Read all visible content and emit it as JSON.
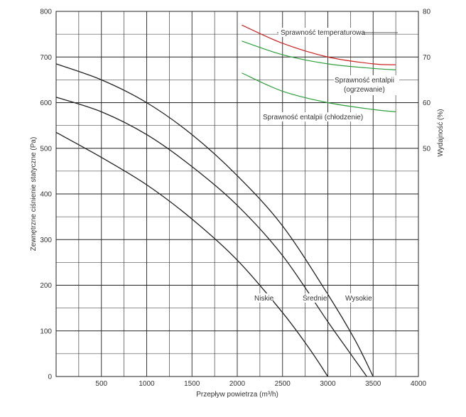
{
  "chart_data": {
    "type": "line",
    "xlabel": "Przepływ powietrza (m³/h)",
    "ylabel_left": "Zewnętrzne ciśnienie statyczne (Pa)",
    "ylabel_right": "Wydajność (%)",
    "xlim": [
      0,
      4000
    ],
    "ylim_left": [
      0,
      800
    ],
    "ylim_right": [
      0,
      80
    ],
    "x_ticks": [
      "500",
      "1000",
      "1500",
      "2000",
      "2500",
      "3000",
      "3500",
      "4000"
    ],
    "y_ticks_left": [
      "0",
      "100",
      "200",
      "300",
      "400",
      "500",
      "600",
      "700",
      "800"
    ],
    "y_ticks_right": [
      "50",
      "60",
      "70",
      "80"
    ],
    "grid": true,
    "fan_curves": [
      {
        "name": "Niskie",
        "x": [
          0,
          500,
          1000,
          1500,
          2000,
          2500,
          2800,
          3000
        ],
        "y": [
          535,
          480,
          420,
          345,
          255,
          140,
          60,
          0
        ],
        "color": "#222222"
      },
      {
        "name": "Średnie",
        "x": [
          0,
          500,
          1000,
          1500,
          2000,
          2500,
          3000,
          3250,
          3430
        ],
        "y": [
          612,
          580,
          530,
          460,
          375,
          265,
          120,
          50,
          0
        ],
        "color": "#222222"
      },
      {
        "name": "Wysokie",
        "x": [
          0,
          500,
          1000,
          1500,
          2000,
          2500,
          3000,
          3300,
          3500
        ],
        "y": [
          685,
          650,
          600,
          530,
          440,
          330,
          180,
          80,
          0
        ],
        "color": "#222222"
      }
    ],
    "efficiency_curves": [
      {
        "name": "Sprawność temperaturowa",
        "x": [
          2050,
          2500,
          3000,
          3500,
          3750
        ],
        "y": [
          77,
          73,
          70,
          68.5,
          68.3
        ],
        "color": "#cc2222"
      },
      {
        "name": "Sprawność entalpii (ogrzewanie)",
        "x": [
          2050,
          2500,
          3000,
          3500,
          3750
        ],
        "y": [
          73.5,
          70.5,
          68.5,
          67.5,
          67.2
        ],
        "color": "#2e9e3e"
      },
      {
        "name": "Sprawność entalpii (chłodzenie)",
        "x": [
          2050,
          2500,
          3000,
          3500,
          3750
        ],
        "y": [
          66.5,
          62.5,
          60,
          58.5,
          58
        ],
        "color": "#2e9e3e"
      }
    ],
    "annotations": {
      "temp": "Sprawność temperaturowa",
      "heat_1": "Sprawność entalpii",
      "heat_2": "(ogrzewanie)",
      "cool": "Sprawność entalpii (chłodzenie)",
      "low": "Niskie",
      "mid": "Średnie",
      "high": "Wysokie"
    }
  }
}
